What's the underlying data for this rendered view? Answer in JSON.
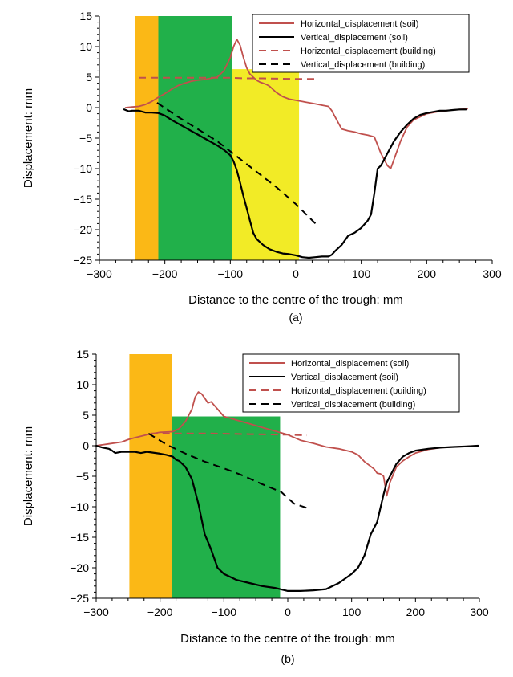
{
  "colors": {
    "soil_horizontal": "#c0504d",
    "soil_vertical": "#000000",
    "building_horizontal": "#c0504d",
    "building_vertical": "#000000",
    "orange": "#fbb816",
    "green": "#21b04a",
    "yellow": "#f2eb26"
  },
  "chart_data": [
    {
      "type": "line",
      "panel": "(a)",
      "xlabel": "Distance to the centre of the trough: mm",
      "ylabel": "Displacement: mm",
      "xlim": [
        -300,
        300
      ],
      "ylim": [
        -25,
        15
      ],
      "xticks": [
        -300,
        -200,
        -100,
        0,
        100,
        200,
        300
      ],
      "yticks": [
        15,
        10,
        5,
        0,
        -5,
        -10,
        -15,
        -20,
        -25
      ],
      "grid": false,
      "legend_position": "top-right",
      "zones": [
        {
          "color": "orange",
          "x": [
            -245,
            -210
          ],
          "y": [
            -25,
            15
          ]
        },
        {
          "color": "green",
          "x": [
            -210,
            -97
          ],
          "y": [
            -25,
            15
          ]
        },
        {
          "color": "yellow",
          "x": [
            -97,
            5
          ],
          "y": [
            -25,
            6.3
          ]
        }
      ],
      "series": [
        {
          "name": "Horizontal_displacement (soil)",
          "style": "solid",
          "color": "soil_horizontal",
          "x": [
            -260,
            -250,
            -240,
            -230,
            -220,
            -210,
            -200,
            -190,
            -180,
            -170,
            -160,
            -150,
            -140,
            -130,
            -120,
            -110,
            -100,
            -95,
            -90,
            -85,
            -80,
            -75,
            -70,
            -65,
            -60,
            -55,
            -50,
            -45,
            -40,
            -30,
            -20,
            -10,
            0,
            10,
            20,
            30,
            40,
            50,
            55,
            60,
            65,
            70,
            80,
            90,
            100,
            110,
            120,
            130,
            140,
            145,
            150,
            160,
            170,
            180,
            190,
            200,
            210,
            220,
            230,
            240,
            250,
            262
          ],
          "y": [
            0.0,
            0.1,
            0.2,
            0.5,
            1.0,
            1.7,
            2.3,
            3.0,
            3.6,
            4.0,
            4.3,
            4.5,
            4.6,
            4.8,
            5.0,
            6.0,
            8.2,
            10.0,
            11.2,
            10.2,
            8.2,
            6.5,
            5.5,
            5.0,
            4.5,
            4.2,
            4.0,
            3.8,
            3.5,
            2.5,
            1.8,
            1.4,
            1.2,
            1.0,
            0.8,
            0.6,
            0.4,
            0.2,
            -0.5,
            -1.5,
            -2.5,
            -3.5,
            -3.8,
            -4.0,
            -4.3,
            -4.5,
            -4.8,
            -7.5,
            -9.5,
            -10.0,
            -8.5,
            -5.5,
            -3.2,
            -2.0,
            -1.5,
            -1.0,
            -0.8,
            -0.6,
            -0.5,
            -0.4,
            -0.3,
            -0.2
          ]
        },
        {
          "name": "Vertical_displacement (soil)",
          "style": "solid",
          "color": "soil_vertical",
          "x": [
            -262,
            -255,
            -250,
            -240,
            -230,
            -220,
            -210,
            -200,
            -190,
            -180,
            -170,
            -160,
            -150,
            -140,
            -130,
            -120,
            -110,
            -100,
            -95,
            -90,
            -85,
            -80,
            -75,
            -70,
            -65,
            -60,
            -50,
            -40,
            -30,
            -20,
            -10,
            0,
            10,
            20,
            30,
            40,
            50,
            55,
            60,
            70,
            80,
            90,
            100,
            110,
            115,
            120,
            125,
            130,
            140,
            150,
            160,
            170,
            180,
            190,
            200,
            210,
            220,
            230,
            240,
            250,
            260
          ],
          "y": [
            -0.3,
            -0.6,
            -0.5,
            -0.5,
            -0.8,
            -0.8,
            -0.9,
            -1.3,
            -2.0,
            -2.6,
            -3.2,
            -3.8,
            -4.4,
            -5.0,
            -5.6,
            -6.2,
            -6.9,
            -7.8,
            -8.8,
            -10.3,
            -12.3,
            -14.5,
            -16.5,
            -18.5,
            -20.5,
            -21.5,
            -22.5,
            -23.2,
            -23.6,
            -23.9,
            -24.0,
            -24.2,
            -24.5,
            -24.6,
            -24.5,
            -24.4,
            -24.4,
            -24.1,
            -23.5,
            -22.5,
            -21.0,
            -20.5,
            -19.7,
            -18.5,
            -17.5,
            -14.0,
            -10.0,
            -9.5,
            -7.5,
            -5.5,
            -4.0,
            -2.8,
            -1.8,
            -1.2,
            -0.9,
            -0.7,
            -0.5,
            -0.5,
            -0.4,
            -0.3,
            -0.3
          ]
        },
        {
          "name": "Horizontal_displacement (building)",
          "style": "dashed",
          "color": "building_horizontal",
          "x": [
            -240,
            -200,
            -150,
            -100,
            -80,
            -50,
            0,
            30
          ],
          "y": [
            4.9,
            4.9,
            4.9,
            4.9,
            4.8,
            4.8,
            4.7,
            4.7
          ]
        },
        {
          "name": "Vertical_displacement (building)",
          "style": "dashed",
          "color": "building_vertical",
          "x": [
            -212,
            -180,
            -150,
            -120,
            -90,
            -60,
            -30,
            0,
            30
          ],
          "y": [
            0.8,
            -1.5,
            -3.5,
            -5.5,
            -8.0,
            -10.5,
            -13.0,
            -15.8,
            -19.0
          ]
        }
      ]
    },
    {
      "type": "line",
      "panel": "(b)",
      "xlabel": "Distance to the centre of the trough: mm",
      "ylabel": "Displacement: mm",
      "xlim": [
        -300,
        300
      ],
      "ylim": [
        -25,
        15
      ],
      "xticks": [
        -300,
        -200,
        -100,
        0,
        100,
        200,
        300
      ],
      "yticks": [
        15,
        10,
        5,
        0,
        -5,
        -10,
        -15,
        -20,
        -25
      ],
      "grid": false,
      "legend_position": "top-right",
      "zones": [
        {
          "color": "orange",
          "x": [
            -248,
            -181
          ],
          "y": [
            -25,
            15
          ]
        },
        {
          "color": "green",
          "x": [
            -181,
            -12
          ],
          "y": [
            -25,
            4.8
          ]
        }
      ],
      "series": [
        {
          "name": "Horizontal_displacement (soil)",
          "style": "solid",
          "color": "soil_horizontal",
          "x": [
            -300,
            -280,
            -260,
            -250,
            -240,
            -220,
            -200,
            -180,
            -170,
            -160,
            -150,
            -145,
            -140,
            -135,
            -130,
            -125,
            -120,
            -115,
            -110,
            -100,
            -90,
            -80,
            -60,
            -40,
            -20,
            0,
            20,
            40,
            60,
            80,
            100,
            110,
            120,
            130,
            135,
            140,
            145,
            150,
            155,
            160,
            170,
            180,
            190,
            200,
            220,
            240,
            260,
            280,
            298
          ],
          "y": [
            0.0,
            0.3,
            0.6,
            1.0,
            1.3,
            1.8,
            2.2,
            2.3,
            2.8,
            4.0,
            6.0,
            8.0,
            8.8,
            8.5,
            7.8,
            7.0,
            7.2,
            6.6,
            6.0,
            4.8,
            4.5,
            4.2,
            3.6,
            3.0,
            2.4,
            1.8,
            0.9,
            0.4,
            -0.2,
            -0.5,
            -1.0,
            -1.5,
            -2.6,
            -3.4,
            -3.8,
            -4.5,
            -4.6,
            -5.0,
            -8.2,
            -6.0,
            -3.5,
            -2.5,
            -1.8,
            -1.2,
            -0.6,
            -0.3,
            -0.2,
            -0.1,
            0.0
          ]
        },
        {
          "name": "Vertical_displacement (soil)",
          "style": "solid",
          "color": "soil_vertical",
          "x": [
            -300,
            -290,
            -280,
            -275,
            -270,
            -260,
            -250,
            -240,
            -230,
            -220,
            -200,
            -190,
            -180,
            -175,
            -170,
            -160,
            -150,
            -140,
            -130,
            -120,
            -110,
            -100,
            -90,
            -80,
            -60,
            -40,
            -20,
            0,
            20,
            40,
            60,
            80,
            100,
            110,
            120,
            130,
            140,
            150,
            155,
            160,
            170,
            180,
            190,
            200,
            220,
            240,
            260,
            280,
            298
          ],
          "y": [
            0.0,
            -0.3,
            -0.5,
            -0.8,
            -1.2,
            -1.0,
            -1.0,
            -1.0,
            -1.2,
            -1.0,
            -1.3,
            -1.5,
            -1.8,
            -2.3,
            -2.5,
            -3.5,
            -5.5,
            -9.5,
            -14.5,
            -17.0,
            -20.0,
            -21.0,
            -21.5,
            -22.0,
            -22.5,
            -23.0,
            -23.3,
            -23.8,
            -23.8,
            -23.7,
            -23.5,
            -22.5,
            -21.0,
            -20.0,
            -18.0,
            -14.5,
            -12.5,
            -8.0,
            -6.0,
            -5.0,
            -3.0,
            -1.8,
            -1.2,
            -0.8,
            -0.5,
            -0.3,
            -0.2,
            -0.1,
            0.0
          ]
        },
        {
          "name": "Horizontal_displacement (building)",
          "style": "dashed",
          "color": "building_horizontal",
          "x": [
            -215,
            -180,
            -120,
            -60,
            0,
            30
          ],
          "y": [
            2.0,
            2.0,
            2.0,
            1.9,
            1.8,
            1.7
          ]
        },
        {
          "name": "Vertical_displacement (building)",
          "style": "dashed",
          "color": "building_vertical",
          "x": [
            -218,
            -190,
            -160,
            -130,
            -100,
            -70,
            -40,
            -10,
            10,
            30
          ],
          "y": [
            2.0,
            0.2,
            -1.3,
            -2.6,
            -3.7,
            -4.9,
            -6.3,
            -7.6,
            -9.5,
            -10.2
          ]
        }
      ]
    }
  ]
}
